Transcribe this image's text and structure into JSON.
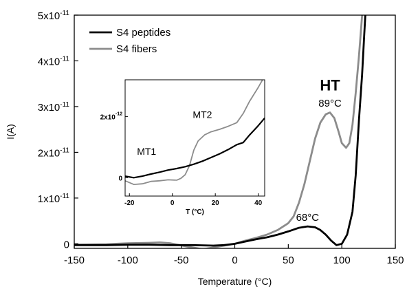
{
  "chart_data": [
    {
      "type": "line",
      "xlabel": "Temperature (°C)",
      "ylabel": "I(A)",
      "xlim": [
        -150,
        150
      ],
      "ylim": [
        -1e-12,
        5e-11
      ],
      "x_ticks": [
        -150,
        -100,
        -50,
        0,
        50,
        100,
        150
      ],
      "x_tick_labels": [
        "-150",
        "-100",
        "-50",
        "0",
        "50",
        "100",
        "150"
      ],
      "y_ticks": [
        0,
        1e-11,
        2e-11,
        3e-11,
        4e-11,
        5e-11
      ],
      "y_tick_labels": [
        "0",
        "1x10-11",
        "2x10-11",
        "3x10-11",
        "4x10-11",
        "5x10-11"
      ],
      "legend_position": "top-left",
      "series": [
        {
          "name": "S4 peptides",
          "color": "#000000",
          "points": [
            [
              -150,
              -3e-13
            ],
            [
              -120,
              -3e-13
            ],
            [
              -100,
              -2e-13
            ],
            [
              -80,
              -2e-13
            ],
            [
              -60,
              -3e-13
            ],
            [
              -40,
              -3e-13
            ],
            [
              -20,
              -4e-13
            ],
            [
              -10,
              -3e-13
            ],
            [
              0,
              0.0
            ],
            [
              10,
              5e-13
            ],
            [
              20,
              1e-12
            ],
            [
              30,
              1.4e-12
            ],
            [
              40,
              2e-12
            ],
            [
              50,
              2.7e-12
            ],
            [
              60,
              3.5e-12
            ],
            [
              68,
              3.8e-12
            ],
            [
              75,
              3.6e-12
            ],
            [
              80,
              3e-12
            ],
            [
              85,
              2e-12
            ],
            [
              90,
              7e-13
            ],
            [
              95,
              -3e-13
            ],
            [
              100,
              0.0
            ],
            [
              105,
              2e-12
            ],
            [
              110,
              7e-12
            ],
            [
              113,
              1.5e-11
            ],
            [
              116,
              2.7e-11
            ],
            [
              119,
              3.7e-11
            ],
            [
              121,
              4.6e-11
            ],
            [
              122,
              5e-11
            ]
          ]
        },
        {
          "name": "S4 fibers",
          "color": "#8c8c8c",
          "points": [
            [
              -150,
              -2e-13
            ],
            [
              -120,
              -1e-13
            ],
            [
              -100,
              1e-13
            ],
            [
              -80,
              2e-13
            ],
            [
              -70,
              3e-13
            ],
            [
              -60,
              1e-13
            ],
            [
              -45,
              -6e-13
            ],
            [
              -30,
              -1.2e-12
            ],
            [
              -20,
              -8e-13
            ],
            [
              -10,
              -4e-13
            ],
            [
              0,
              0.0
            ],
            [
              10,
              7e-13
            ],
            [
              20,
              1.3e-12
            ],
            [
              30,
              2e-12
            ],
            [
              40,
              3e-12
            ],
            [
              50,
              4.5e-12
            ],
            [
              55,
              6e-12
            ],
            [
              60,
              9e-12
            ],
            [
              65,
              1.3e-11
            ],
            [
              70,
              1.8e-11
            ],
            [
              75,
              2.3e-11
            ],
            [
              80,
              2.65e-11
            ],
            [
              85,
              2.83e-11
            ],
            [
              89,
              2.87e-11
            ],
            [
              93,
              2.75e-11
            ],
            [
              97,
              2.45e-11
            ],
            [
              100,
              2.2e-11
            ],
            [
              104,
              2.1e-11
            ],
            [
              107,
              2.2e-11
            ],
            [
              110,
              2.6e-11
            ],
            [
              113,
              3.3e-11
            ],
            [
              116,
              4.1e-11
            ],
            [
              118,
              4.7e-11
            ],
            [
              119,
              5e-11
            ]
          ]
        }
      ],
      "annotations": [
        {
          "text": "HT",
          "x": 89,
          "y": 3.35e-11,
          "bold": true
        },
        {
          "text": "89°C",
          "x": 89,
          "y": 3e-11,
          "bold": false
        },
        {
          "text": "68°C",
          "x": 68,
          "y": 5e-12,
          "bold": false
        }
      ]
    },
    {
      "type": "line",
      "inset": true,
      "xlabel": "T (°C)",
      "ylabel": "",
      "xlim": [
        -22,
        43
      ],
      "ylim": [
        -6e-13,
        3.2e-12
      ],
      "x_ticks": [
        -20,
        0,
        20,
        40
      ],
      "x_tick_labels": [
        "-20",
        "0",
        "20",
        "40"
      ],
      "y_ticks": [
        0,
        2e-12
      ],
      "y_tick_labels": [
        "0",
        "2x10-12"
      ],
      "series": [
        {
          "name": "S4 peptides",
          "color": "#000000",
          "points": [
            [
              -22,
              5e-14
            ],
            [
              -18,
              0.0
            ],
            [
              -14,
              5e-14
            ],
            [
              -10,
              1.2e-13
            ],
            [
              -6,
              1.8e-13
            ],
            [
              -2,
              2.5e-13
            ],
            [
              2,
              3e-13
            ],
            [
              6,
              3.6e-13
            ],
            [
              10,
              4.4e-13
            ],
            [
              14,
              5.4e-13
            ],
            [
              18,
              6.6e-13
            ],
            [
              22,
              7.8e-13
            ],
            [
              26,
              9.2e-13
            ],
            [
              30,
              1.08e-12
            ],
            [
              33,
              1.15e-12
            ],
            [
              36,
              1.4e-12
            ],
            [
              40,
              1.7e-12
            ],
            [
              43,
              1.95e-12
            ]
          ]
        },
        {
          "name": "S4 fibers",
          "color": "#8c8c8c",
          "points": [
            [
              -22,
              -1e-13
            ],
            [
              -18,
              -2.2e-13
            ],
            [
              -14,
              -2e-13
            ],
            [
              -10,
              -1.2e-13
            ],
            [
              -6,
              -1e-13
            ],
            [
              -2,
              -7e-14
            ],
            [
              2,
              -8e-14
            ],
            [
              4,
              -2e-14
            ],
            [
              6,
              1e-13
            ],
            [
              8,
              4e-13
            ],
            [
              10,
              9e-13
            ],
            [
              12,
              1.2e-12
            ],
            [
              15,
              1.4e-12
            ],
            [
              18,
              1.5e-12
            ],
            [
              22,
              1.58e-12
            ],
            [
              26,
              1.68e-12
            ],
            [
              30,
              1.8e-12
            ],
            [
              33,
              2.1e-12
            ],
            [
              36,
              2.5e-12
            ],
            [
              40,
              2.95e-12
            ],
            [
              42,
              3.2e-12
            ]
          ]
        }
      ],
      "annotations": [
        {
          "text": "MT1",
          "x": -12,
          "y": 7.5e-13
        },
        {
          "text": "MT2",
          "x": 14,
          "y": 1.95e-12
        }
      ]
    }
  ]
}
